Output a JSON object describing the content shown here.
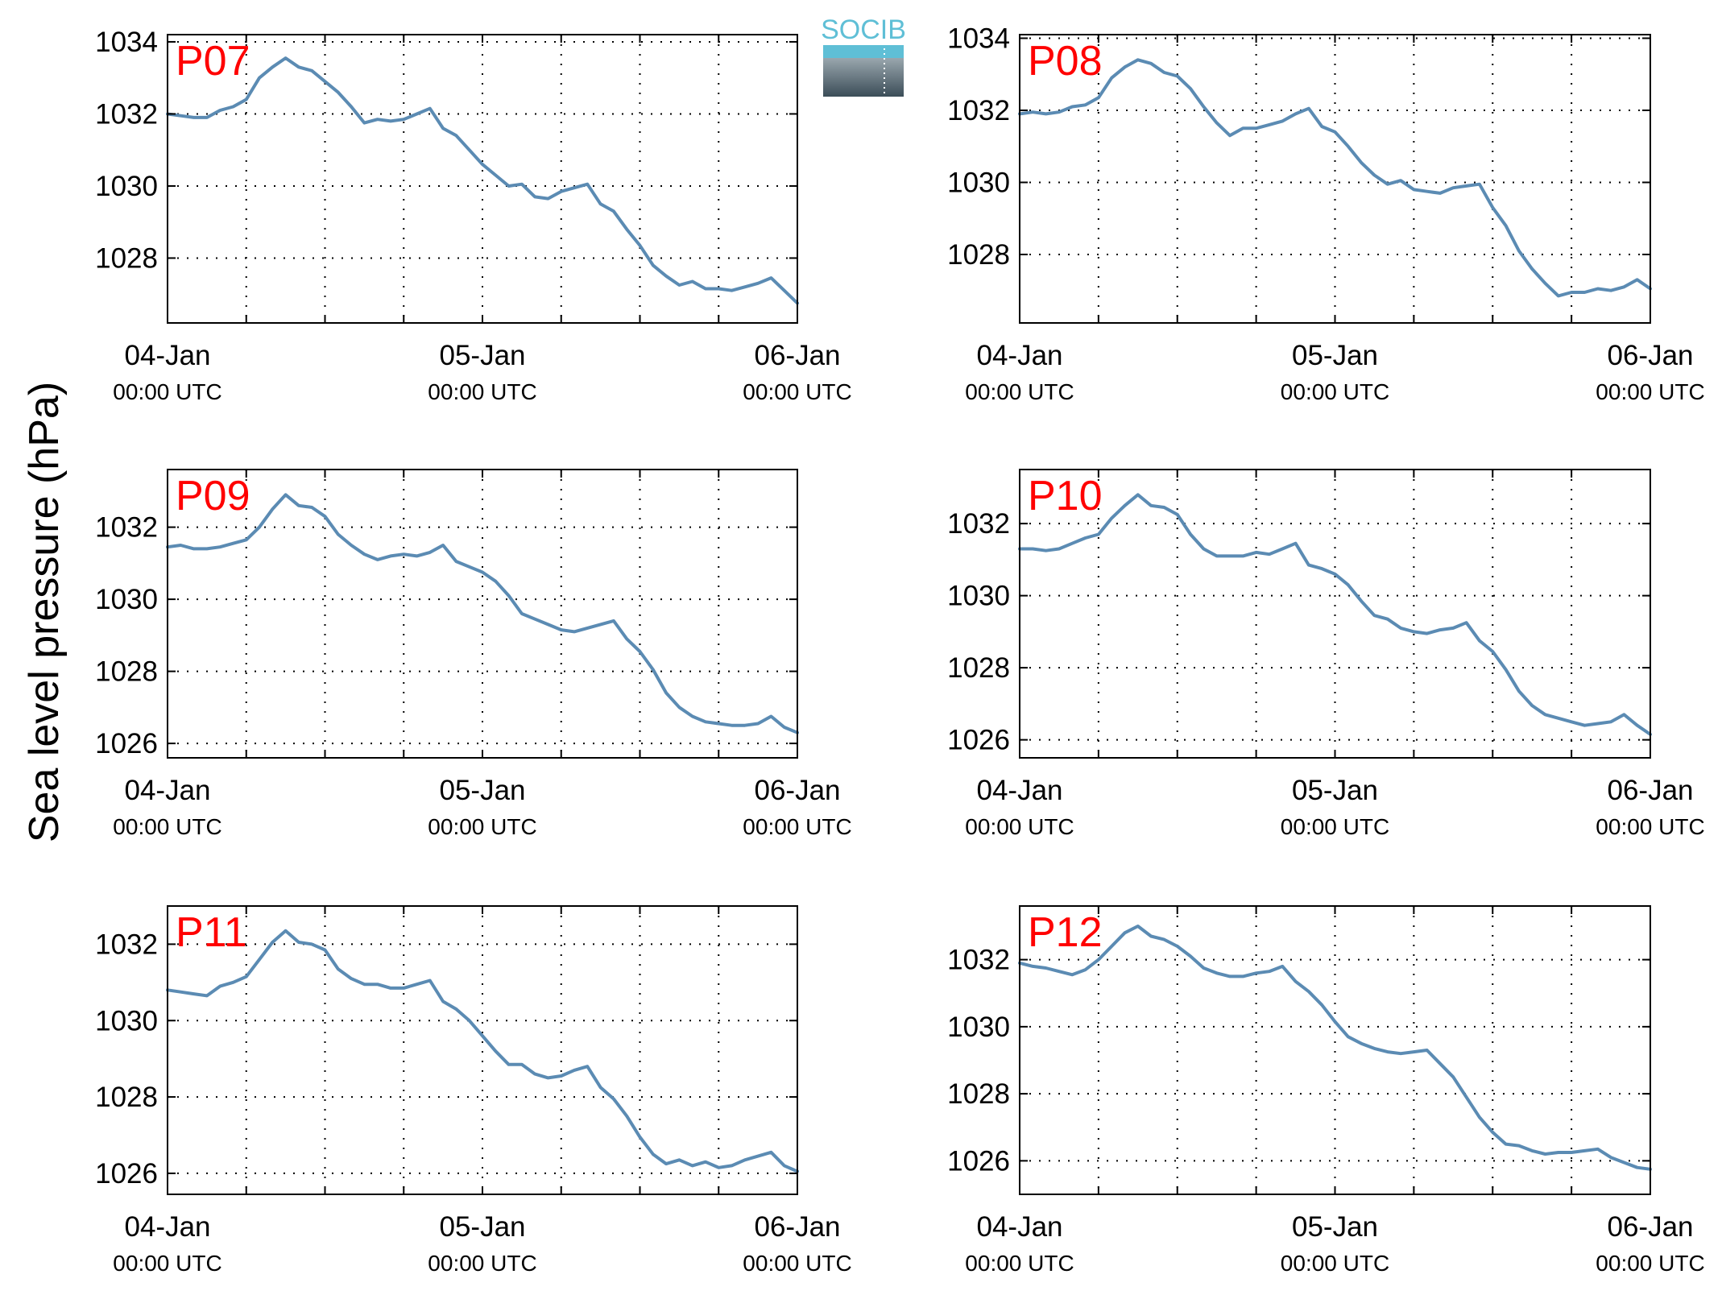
{
  "chart_data": {
    "type": "line",
    "ylabel": "Sea level pressure (hPa)",
    "logo": {
      "text": "SOCIB"
    },
    "colors": {
      "line": "#5b8bb3",
      "panel_label": "#ff0000",
      "logo_text": "#5fbfd6"
    },
    "grid": true,
    "x_range_hours": [
      0,
      48
    ],
    "x_ticks_hours": [
      0,
      6,
      12,
      18,
      24,
      30,
      36,
      42,
      48
    ],
    "x_tick_labels": [
      {
        "hour": 0,
        "date": "04-Jan",
        "time": "00:00 UTC"
      },
      {
        "hour": 24,
        "date": "05-Jan",
        "time": "00:00 UTC"
      },
      {
        "hour": 48,
        "date": "06-Jan",
        "time": "00:00 UTC"
      }
    ],
    "panels": [
      {
        "label": "P07",
        "ylim": [
          1026.2,
          1034.2
        ],
        "yticks": [
          1028,
          1030,
          1032,
          1034
        ],
        "x": [
          0,
          1,
          2,
          3,
          4,
          5,
          6,
          7,
          8,
          9,
          10,
          11,
          12,
          13,
          14,
          15,
          16,
          17,
          18,
          19,
          20,
          21,
          22,
          23,
          24,
          25,
          26,
          27,
          28,
          29,
          30,
          31,
          32,
          33,
          34,
          35,
          36,
          37,
          38,
          39,
          40,
          41,
          42,
          43,
          44,
          45,
          46,
          47,
          48
        ],
        "values": [
          1032.0,
          1031.95,
          1031.9,
          1031.9,
          1032.1,
          1032.2,
          1032.4,
          1033.0,
          1033.3,
          1033.55,
          1033.3,
          1033.2,
          1032.9,
          1032.6,
          1032.2,
          1031.75,
          1031.85,
          1031.8,
          1031.85,
          1032.0,
          1032.15,
          1031.6,
          1031.4,
          1031.0,
          1030.6,
          1030.3,
          1030.0,
          1030.05,
          1029.7,
          1029.65,
          1029.85,
          1029.95,
          1030.05,
          1029.5,
          1029.3,
          1028.8,
          1028.35,
          1027.8,
          1027.5,
          1027.25,
          1027.35,
          1027.15,
          1027.15,
          1027.1,
          1027.2,
          1027.3,
          1027.45,
          1027.1,
          1026.75
        ]
      },
      {
        "label": "P08",
        "ylim": [
          1026.1,
          1034.1
        ],
        "yticks": [
          1028,
          1030,
          1032,
          1034
        ],
        "x": [
          0,
          1,
          2,
          3,
          4,
          5,
          6,
          7,
          8,
          9,
          10,
          11,
          12,
          13,
          14,
          15,
          16,
          17,
          18,
          19,
          20,
          21,
          22,
          23,
          24,
          25,
          26,
          27,
          28,
          29,
          30,
          31,
          32,
          33,
          34,
          35,
          36,
          37,
          38,
          39,
          40,
          41,
          42,
          43,
          44,
          45,
          46,
          47,
          48
        ],
        "values": [
          1031.9,
          1031.95,
          1031.9,
          1031.95,
          1032.1,
          1032.15,
          1032.35,
          1032.9,
          1033.2,
          1033.4,
          1033.3,
          1033.05,
          1032.95,
          1032.6,
          1032.1,
          1031.65,
          1031.3,
          1031.5,
          1031.5,
          1031.6,
          1031.7,
          1031.9,
          1032.05,
          1031.55,
          1031.4,
          1031.0,
          1030.55,
          1030.2,
          1029.95,
          1030.05,
          1029.8,
          1029.75,
          1029.7,
          1029.85,
          1029.9,
          1029.95,
          1029.3,
          1028.8,
          1028.1,
          1027.6,
          1027.2,
          1026.85,
          1026.95,
          1026.95,
          1027.05,
          1027.0,
          1027.1,
          1027.3,
          1027.05
        ]
      },
      {
        "label": "P09",
        "ylim": [
          1025.6,
          1033.6
        ],
        "yticks": [
          1026,
          1028,
          1030,
          1032
        ],
        "x": [
          0,
          1,
          2,
          3,
          4,
          5,
          6,
          7,
          8,
          9,
          10,
          11,
          12,
          13,
          14,
          15,
          16,
          17,
          18,
          19,
          20,
          21,
          22,
          23,
          24,
          25,
          26,
          27,
          28,
          29,
          30,
          31,
          32,
          33,
          34,
          35,
          36,
          37,
          38,
          39,
          40,
          41,
          42,
          43,
          44,
          45,
          46,
          47,
          48
        ],
        "values": [
          1031.45,
          1031.5,
          1031.4,
          1031.4,
          1031.45,
          1031.55,
          1031.65,
          1032.0,
          1032.5,
          1032.9,
          1032.6,
          1032.55,
          1032.3,
          1031.8,
          1031.5,
          1031.25,
          1031.1,
          1031.2,
          1031.25,
          1031.2,
          1031.3,
          1031.5,
          1031.05,
          1030.9,
          1030.75,
          1030.5,
          1030.1,
          1029.6,
          1029.45,
          1029.3,
          1029.15,
          1029.1,
          1029.2,
          1029.3,
          1029.4,
          1028.9,
          1028.55,
          1028.05,
          1027.4,
          1027.0,
          1026.75,
          1026.6,
          1026.55,
          1026.5,
          1026.5,
          1026.55,
          1026.75,
          1026.45,
          1026.3
        ]
      },
      {
        "label": "P10",
        "ylim": [
          1025.5,
          1033.5
        ],
        "yticks": [
          1026,
          1028,
          1030,
          1032
        ],
        "x": [
          0,
          1,
          2,
          3,
          4,
          5,
          6,
          7,
          8,
          9,
          10,
          11,
          12,
          13,
          14,
          15,
          16,
          17,
          18,
          19,
          20,
          21,
          22,
          23,
          24,
          25,
          26,
          27,
          28,
          29,
          30,
          31,
          32,
          33,
          34,
          35,
          36,
          37,
          38,
          39,
          40,
          41,
          42,
          43,
          44,
          45,
          46,
          47,
          48
        ],
        "values": [
          1031.3,
          1031.3,
          1031.25,
          1031.3,
          1031.45,
          1031.6,
          1031.7,
          1032.15,
          1032.5,
          1032.8,
          1032.5,
          1032.45,
          1032.25,
          1031.7,
          1031.3,
          1031.1,
          1031.1,
          1031.1,
          1031.2,
          1031.15,
          1031.3,
          1031.45,
          1030.85,
          1030.75,
          1030.6,
          1030.3,
          1029.85,
          1029.45,
          1029.35,
          1029.1,
          1029.0,
          1028.95,
          1029.05,
          1029.1,
          1029.25,
          1028.75,
          1028.45,
          1027.95,
          1027.35,
          1026.95,
          1026.7,
          1026.6,
          1026.5,
          1026.4,
          1026.45,
          1026.5,
          1026.7,
          1026.4,
          1026.15
        ]
      },
      {
        "label": "P11",
        "ylim": [
          1025.45,
          1033.0
        ],
        "yticks": [
          1026,
          1028,
          1030,
          1032
        ],
        "x": [
          0,
          1,
          2,
          3,
          4,
          5,
          6,
          7,
          8,
          9,
          10,
          11,
          12,
          13,
          14,
          15,
          16,
          17,
          18,
          19,
          20,
          21,
          22,
          23,
          24,
          25,
          26,
          27,
          28,
          29,
          30,
          31,
          32,
          33,
          34,
          35,
          36,
          37,
          38,
          39,
          40,
          41,
          42,
          43,
          44,
          45,
          46,
          47,
          48
        ],
        "values": [
          1030.8,
          1030.75,
          1030.7,
          1030.65,
          1030.9,
          1031.0,
          1031.15,
          1031.6,
          1032.05,
          1032.35,
          1032.05,
          1032.0,
          1031.85,
          1031.35,
          1031.1,
          1030.95,
          1030.95,
          1030.85,
          1030.85,
          1030.95,
          1031.05,
          1030.5,
          1030.3,
          1030.0,
          1029.6,
          1029.2,
          1028.85,
          1028.85,
          1028.6,
          1028.5,
          1028.55,
          1028.7,
          1028.8,
          1028.25,
          1027.95,
          1027.5,
          1026.95,
          1026.5,
          1026.25,
          1026.35,
          1026.2,
          1026.3,
          1026.15,
          1026.2,
          1026.35,
          1026.45,
          1026.55,
          1026.2,
          1026.05
        ]
      },
      {
        "label": "P12",
        "ylim": [
          1025.0,
          1033.6
        ],
        "yticks": [
          1026,
          1028,
          1030,
          1032
        ],
        "x": [
          0,
          1,
          2,
          3,
          4,
          5,
          6,
          7,
          8,
          9,
          10,
          11,
          12,
          13,
          14,
          15,
          16,
          17,
          18,
          19,
          20,
          21,
          22,
          23,
          24,
          25,
          26,
          27,
          28,
          29,
          30,
          31,
          32,
          33,
          34,
          35,
          36,
          37,
          38,
          39,
          40,
          41,
          42,
          43,
          44,
          45,
          46,
          47,
          48
        ],
        "values": [
          1031.9,
          1031.8,
          1031.75,
          1031.65,
          1031.55,
          1031.7,
          1032.0,
          1032.4,
          1032.8,
          1033.0,
          1032.7,
          1032.6,
          1032.4,
          1032.1,
          1031.75,
          1031.6,
          1031.5,
          1031.5,
          1031.6,
          1031.65,
          1031.8,
          1031.35,
          1031.05,
          1030.65,
          1030.15,
          1029.7,
          1029.5,
          1029.35,
          1029.25,
          1029.2,
          1029.25,
          1029.3,
          1028.9,
          1028.5,
          1027.9,
          1027.3,
          1026.85,
          1026.5,
          1026.45,
          1026.3,
          1026.2,
          1026.25,
          1026.25,
          1026.3,
          1026.35,
          1026.1,
          1025.95,
          1025.8,
          1025.75
        ]
      }
    ]
  }
}
